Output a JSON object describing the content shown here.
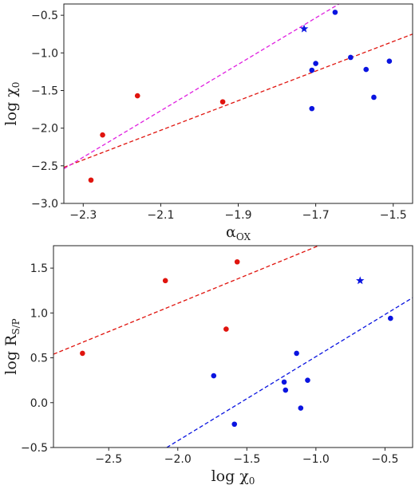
{
  "chart_data": [
    {
      "type": "scatter",
      "xlabel_main": "α",
      "xlabel_sub": "OX",
      "ylabel_main": "log χ",
      "ylabel_sub": "0",
      "xlim": [
        -2.35,
        -1.45
      ],
      "ylim": [
        -3.0,
        -0.35
      ],
      "xticks": [
        -2.3,
        -2.1,
        -1.9,
        -1.7,
        -1.5
      ],
      "xtick_labels": [
        "−2.3",
        "−2.1",
        "−1.9",
        "−1.7",
        "−1.5"
      ],
      "yticks": [
        -3.0,
        -2.5,
        -2.0,
        -1.5,
        -1.0,
        -0.5
      ],
      "ytick_labels": [
        "−3.0",
        "−2.5",
        "−2.0",
        "−1.5",
        "−1.0",
        "−0.5"
      ],
      "grid": false,
      "series": [
        {
          "color": "#e0140e",
          "marker": "circle",
          "points": [
            [
              -2.28,
              -2.69
            ],
            [
              -2.25,
              -2.09
            ],
            [
              -2.16,
              -1.57
            ],
            [
              -1.94,
              -1.65
            ]
          ]
        },
        {
          "color": "#0a14e0",
          "marker": "circle",
          "points": [
            [
              -1.65,
              -0.46
            ],
            [
              -1.7,
              -1.14
            ],
            [
              -1.71,
              -1.23
            ],
            [
              -1.71,
              -1.74
            ],
            [
              -1.61,
              -1.06
            ],
            [
              -1.57,
              -1.22
            ],
            [
              -1.55,
              -1.59
            ],
            [
              -1.51,
              -1.11
            ]
          ]
        },
        {
          "color": "#0a14e0",
          "marker": "star",
          "points": [
            [
              -1.73,
              -0.68
            ]
          ]
        }
      ],
      "lines": [
        {
          "color": "#e0140e",
          "style": "dashed",
          "from": [
            -2.35,
            -2.52
          ],
          "to": [
            -1.45,
            -0.75
          ]
        },
        {
          "color": "#e020e0",
          "style": "dashed",
          "from": [
            -2.35,
            -2.54
          ],
          "to": [
            -1.64,
            -0.35
          ]
        }
      ]
    },
    {
      "type": "scatter",
      "xlabel_main": "log χ",
      "xlabel_sub": "0",
      "ylabel_main": "log R",
      "ylabel_sub": "S/P",
      "xlim": [
        -2.9,
        -0.3
      ],
      "ylim": [
        -0.5,
        1.75
      ],
      "xticks": [
        -2.5,
        -2.0,
        -1.5,
        -1.0,
        -0.5
      ],
      "xtick_labels": [
        "−2.5",
        "−2.0",
        "−1.5",
        "−1.0",
        "−0.5"
      ],
      "yticks": [
        -0.5,
        0.0,
        0.5,
        1.0,
        1.5
      ],
      "ytick_labels": [
        "−0.5",
        "0.0",
        "0.5",
        "1.0",
        "1.5"
      ],
      "grid": false,
      "series": [
        {
          "color": "#e0140e",
          "marker": "circle",
          "points": [
            [
              -2.69,
              0.55
            ],
            [
              -2.09,
              1.36
            ],
            [
              -1.65,
              0.82
            ],
            [
              -1.57,
              1.57
            ]
          ]
        },
        {
          "color": "#0a14e0",
          "marker": "circle",
          "points": [
            [
              -1.74,
              0.3
            ],
            [
              -1.59,
              -0.24
            ],
            [
              -1.23,
              0.23
            ],
            [
              -1.22,
              0.14
            ],
            [
              -1.14,
              0.55
            ],
            [
              -1.11,
              -0.06
            ],
            [
              -1.06,
              0.25
            ],
            [
              -0.46,
              0.94
            ]
          ]
        },
        {
          "color": "#0a14e0",
          "marker": "star",
          "points": [
            [
              -0.68,
              1.36
            ]
          ]
        }
      ],
      "lines": [
        {
          "color": "#e0140e",
          "style": "dashed",
          "from": [
            -2.9,
            0.54
          ],
          "to": [
            -0.98,
            1.75
          ]
        },
        {
          "color": "#0a14e0",
          "style": "dashed",
          "from": [
            -2.08,
            -0.5
          ],
          "to": [
            -0.3,
            1.17
          ]
        }
      ]
    }
  ]
}
